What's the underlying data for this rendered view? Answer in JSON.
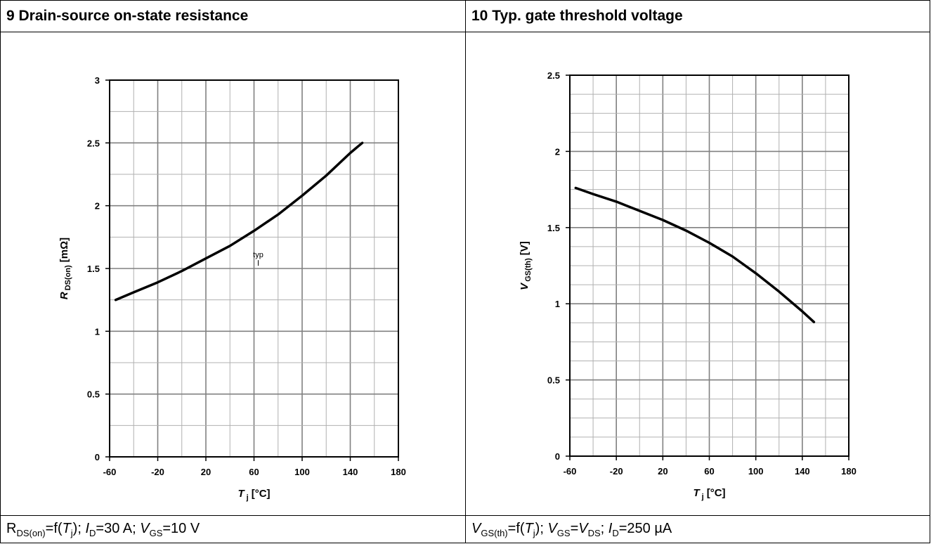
{
  "panels": [
    {
      "title": "9 Drain-source on-state resistance",
      "caption": {
        "p1": "R",
        "p1sub": "DS(on)",
        "p2": "=f(",
        "p3": "T",
        "p3sub": "j",
        "p4": "); ",
        "p5": "I",
        "p5sub": "D",
        "p6": "=30 A; ",
        "p7": "V",
        "p7sub": "GS",
        "p8": "=10 V"
      }
    },
    {
      "title": "10 Typ. gate threshold voltage",
      "caption": {
        "p1": "V",
        "p1sub": "GS(th)",
        "p2": "=f(",
        "p3": "T",
        "p3sub": "j",
        "p4": "); ",
        "p5": "V",
        "p5sub": "GS",
        "p6": "=",
        "p7": "V",
        "p7sub": "DS",
        "p8": "; ",
        "p9": "I",
        "p9sub": "D",
        "p10": "=250 µA"
      }
    }
  ],
  "chart_data": [
    {
      "type": "line",
      "xlabel_main": "T",
      "xlabel_sub": "j",
      "xlabel_unit": "[°C]",
      "ylabel_main": "R",
      "ylabel_sub": "DS(on)",
      "ylabel_unit": "[mΩ]",
      "xlim": [
        -60,
        180
      ],
      "ylim": [
        0,
        3
      ],
      "x_ticks": [
        -60,
        -20,
        20,
        60,
        100,
        140,
        180
      ],
      "y_ticks": [
        0,
        0.5,
        1,
        1.5,
        2,
        2.5,
        3
      ],
      "grid": true,
      "minor_x_step": 20,
      "minor_y_step": 0.25,
      "annotation": {
        "text": "typ",
        "x": 60,
        "y": 1.6
      },
      "series": [
        {
          "x": [
            -55,
            -40,
            -20,
            0,
            20,
            40,
            60,
            80,
            100,
            120,
            140,
            150
          ],
          "y": [
            1.25,
            1.31,
            1.39,
            1.48,
            1.58,
            1.68,
            1.8,
            1.93,
            2.08,
            2.24,
            2.42,
            2.5
          ]
        }
      ]
    },
    {
      "type": "line",
      "xlabel_main": "T",
      "xlabel_sub": "j",
      "xlabel_unit": "[°C]",
      "ylabel_main": "V",
      "ylabel_sub": "GS(th)",
      "ylabel_unit": "[V]",
      "xlim": [
        -60,
        180
      ],
      "ylim": [
        0,
        2.5
      ],
      "x_ticks": [
        -60,
        -20,
        20,
        60,
        100,
        140,
        180
      ],
      "y_ticks": [
        0,
        0.5,
        1,
        1.5,
        2,
        2.5
      ],
      "grid": true,
      "minor_x_step": 20,
      "minor_y_step": 0.125,
      "series": [
        {
          "x": [
            -55,
            -40,
            -20,
            0,
            20,
            40,
            60,
            80,
            100,
            120,
            140,
            150
          ],
          "y": [
            1.76,
            1.72,
            1.67,
            1.61,
            1.55,
            1.48,
            1.4,
            1.31,
            1.2,
            1.08,
            0.95,
            0.88
          ]
        }
      ]
    }
  ]
}
